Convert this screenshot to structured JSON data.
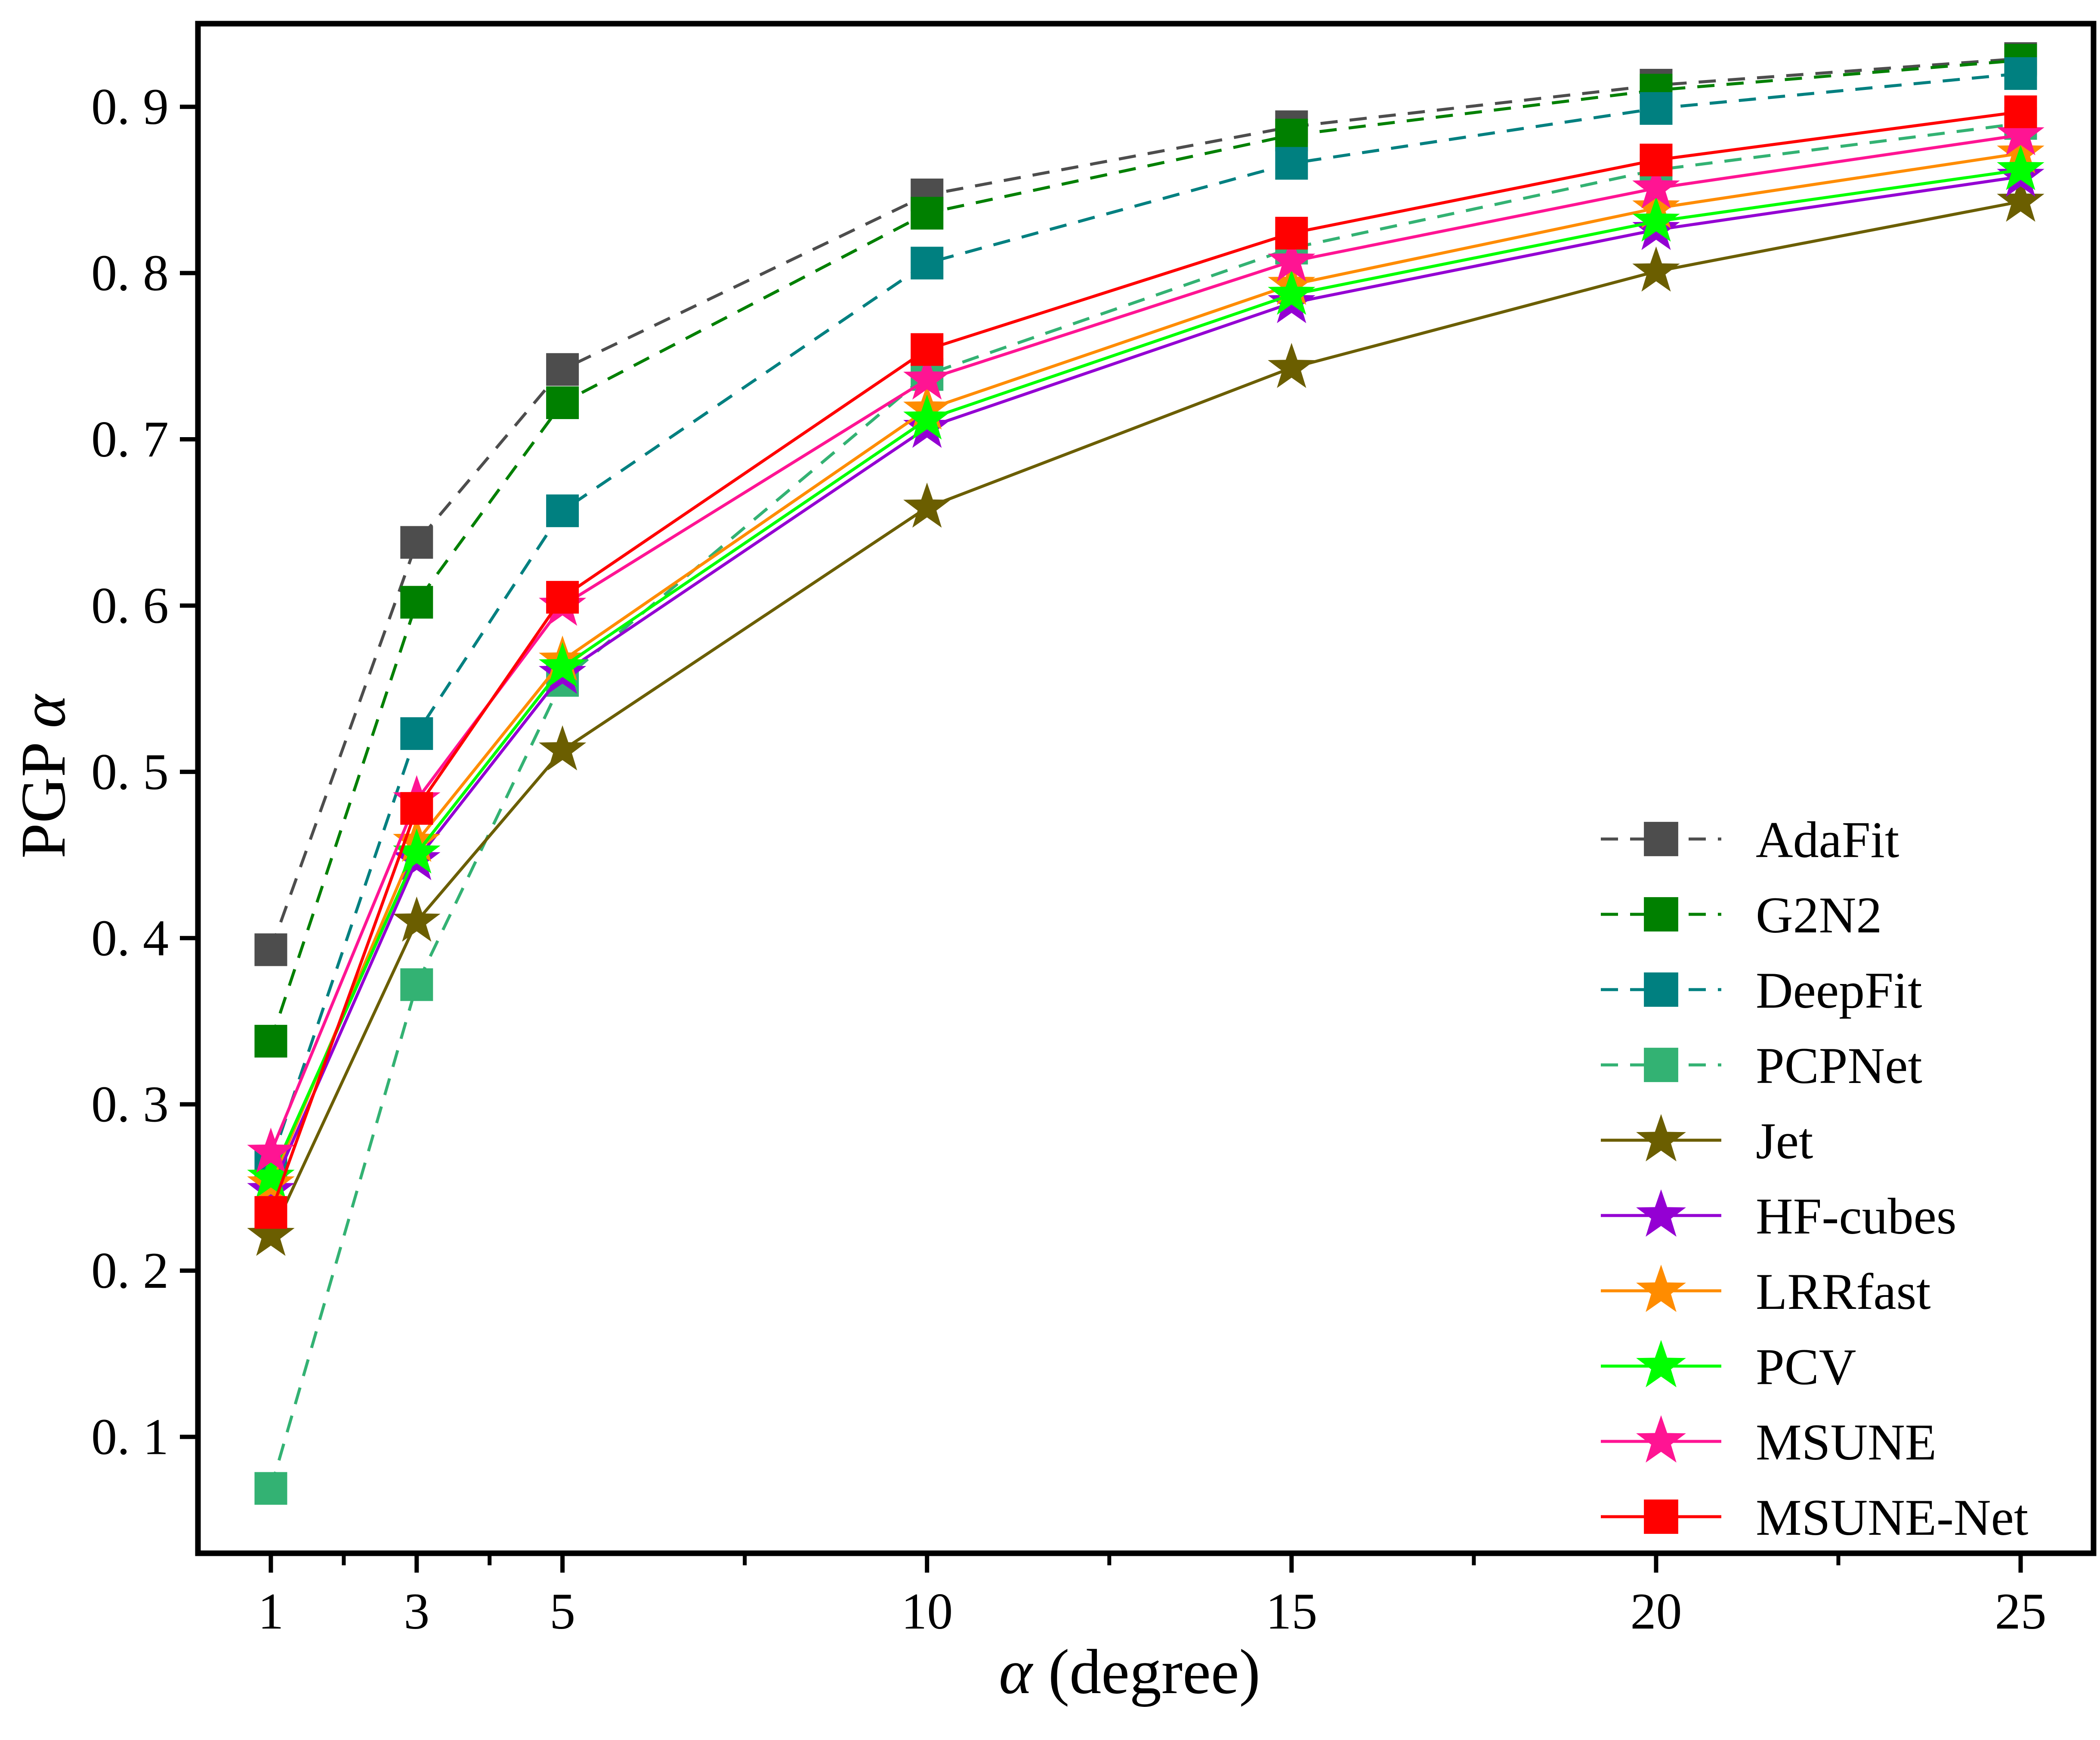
{
  "chart_data": {
    "type": "line",
    "title": "",
    "xlabel_symbol": "α",
    "xlabel_text": " (degree)",
    "ylabel_text": "PGP ",
    "ylabel_symbol": "α",
    "x": [
      1,
      3,
      5,
      10,
      15,
      20,
      25
    ],
    "xlim": [
      0,
      26
    ],
    "ylim": [
      0.03,
      0.95
    ],
    "x_ticks": [
      1,
      3,
      5,
      10,
      15,
      20,
      25
    ],
    "x_tick_labels": [
      "1",
      "3",
      "5",
      "10",
      "15",
      "20",
      "25"
    ],
    "x_minor_ticks": [
      2,
      4,
      7.5,
      12.5,
      17.5,
      22.5
    ],
    "y_ticks": [
      0.1,
      0.2,
      0.3,
      0.4,
      0.5,
      0.6,
      0.7,
      0.8,
      0.9
    ],
    "y_tick_labels": [
      "0. 1",
      "0. 2",
      "0. 3",
      "0. 4",
      "0. 5",
      "0. 6",
      "0. 7",
      "0. 8",
      "0. 9"
    ],
    "grid": false,
    "legend_position": "bottom-right",
    "series": [
      {
        "name": "AdaFit",
        "values": [
          0.393,
          0.638,
          0.742,
          0.847,
          0.888,
          0.913,
          0.929
        ],
        "color": "#4d4d4d",
        "dash": true,
        "marker": "square"
      },
      {
        "name": "G2N2",
        "values": [
          0.338,
          0.602,
          0.722,
          0.836,
          0.883,
          0.91,
          0.928
        ],
        "color": "#008000",
        "dash": true,
        "marker": "square"
      },
      {
        "name": "DeepFit",
        "values": [
          0.265,
          0.523,
          0.657,
          0.806,
          0.866,
          0.899,
          0.92
        ],
        "color": "#008080",
        "dash": true,
        "marker": "square"
      },
      {
        "name": "PCPNet",
        "values": [
          0.069,
          0.372,
          0.555,
          0.739,
          0.815,
          0.862,
          0.89
        ],
        "color": "#33b273",
        "dash": true,
        "marker": "square"
      },
      {
        "name": "Jet",
        "values": [
          0.221,
          0.41,
          0.513,
          0.659,
          0.743,
          0.801,
          0.843
        ],
        "color": "#6b5e00",
        "dash": false,
        "marker": "star"
      },
      {
        "name": "HF-cubes",
        "values": [
          0.248,
          0.447,
          0.559,
          0.707,
          0.782,
          0.826,
          0.858
        ],
        "color": "#9400d3",
        "dash": false,
        "marker": "star"
      },
      {
        "name": "LRRfast",
        "values": [
          0.252,
          0.458,
          0.567,
          0.718,
          0.793,
          0.839,
          0.872
        ],
        "color": "#ff8c00",
        "dash": false,
        "marker": "star"
      },
      {
        "name": "PCV",
        "values": [
          0.256,
          0.451,
          0.563,
          0.712,
          0.787,
          0.831,
          0.862
        ],
        "color": "#00ff00",
        "dash": false,
        "marker": "star"
      },
      {
        "name": "MSUNE",
        "values": [
          0.271,
          0.483,
          0.6,
          0.736,
          0.807,
          0.851,
          0.883
        ],
        "color": "#ff1493",
        "dash": false,
        "marker": "star"
      },
      {
        "name": "MSUNE-Net",
        "values": [
          0.235,
          0.478,
          0.605,
          0.754,
          0.824,
          0.868,
          0.897
        ],
        "color": "#ff0000",
        "dash": false,
        "marker": "square"
      }
    ]
  }
}
